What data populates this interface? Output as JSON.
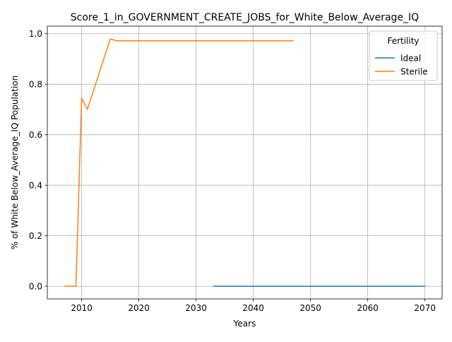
{
  "chart_data": {
    "type": "line",
    "title": "Score_1_in_GOVERNMENT_CREATE_JOBS_for_White_Below_Average_IQ",
    "xlabel": "Years",
    "ylabel": "% of White Below_Average_IQ Population",
    "xlim": [
      2004,
      2073
    ],
    "ylim": [
      -0.05,
      1.03
    ],
    "xticks": [
      2010,
      2020,
      2030,
      2040,
      2050,
      2060,
      2070
    ],
    "xtick_labels": [
      "2010",
      "2020",
      "2030",
      "2040",
      "2050",
      "2060",
      "2070"
    ],
    "yticks": [
      0.0,
      0.2,
      0.4,
      0.6,
      0.8,
      1.0
    ],
    "ytick_labels": [
      "0.0",
      "0.2",
      "0.4",
      "0.6",
      "0.8",
      "1.0"
    ],
    "grid": true,
    "legend": {
      "title": "Fertility",
      "placement": "top-right"
    },
    "series": [
      {
        "name": "Ideal",
        "color": "#1f77b4",
        "x": [
          2033,
          2040,
          2050,
          2060,
          2070
        ],
        "y": [
          0.0,
          0.0,
          0.0,
          0.0,
          0.0
        ]
      },
      {
        "name": "Sterile",
        "color": "#ff7f0e",
        "x": [
          2007,
          2009,
          2010,
          2011,
          2015,
          2016,
          2020,
          2030,
          2040,
          2047
        ],
        "y": [
          0.0,
          0.0,
          0.745,
          0.7,
          0.98,
          0.972,
          0.972,
          0.972,
          0.972,
          0.972
        ]
      }
    ]
  }
}
